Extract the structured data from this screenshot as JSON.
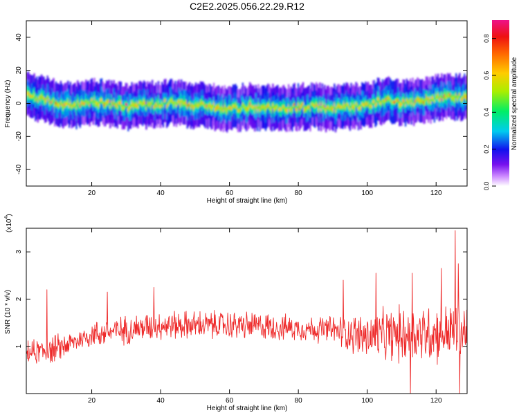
{
  "title": "C2E2.2025.056.22.29.R12",
  "colors": {
    "snr_line": "#ee2a2a",
    "axis": "#000000"
  },
  "chart_data": [
    {
      "type": "heatmap",
      "xlabel": "Height of straight line (km)",
      "ylabel": "Frequency (Hz)",
      "xlim": [
        1,
        129
      ],
      "ylim": [
        -50,
        50
      ],
      "xticks": [
        20,
        40,
        60,
        80,
        100,
        120
      ],
      "yticks": [
        -40,
        -20,
        0,
        20,
        40
      ],
      "xticklabels": [
        "20",
        "40",
        "60",
        "80",
        "100",
        "120"
      ],
      "yticklabels": [
        "-40",
        "-20",
        "0",
        "20",
        "40"
      ],
      "ridge_x": [
        1,
        5,
        10,
        15,
        20,
        25,
        30,
        35,
        40,
        45,
        50,
        55,
        60,
        65,
        70,
        75,
        80,
        85,
        90,
        95,
        100,
        105,
        110,
        115,
        120,
        125,
        129
      ],
      "ridge_y": [
        5,
        3,
        0,
        -1,
        1,
        0,
        -2,
        -1,
        0,
        0,
        -1,
        -2,
        -3,
        -2,
        -3,
        -3,
        -2,
        -2,
        -3,
        -2,
        -1,
        2,
        0,
        1,
        3,
        4,
        4
      ],
      "colorbar": {
        "label": "Normalized spectral amplitude",
        "range": [
          0,
          0.9
        ],
        "ticks": [
          0.0,
          0.2,
          0.4,
          0.6,
          0.8
        ],
        "ticklabels": [
          "0.0",
          "0.2",
          "0.4",
          "0.6",
          "0.8"
        ]
      }
    },
    {
      "type": "line",
      "xlabel": "Height of straight line (km)",
      "ylabel": "SNR (10 * v/v)",
      "scale_label": "(x10",
      "scale_exponent": "4",
      "xlim": [
        1,
        129
      ],
      "ylim": [
        0,
        3.5
      ],
      "xticks": [
        20,
        40,
        60,
        80,
        100,
        120
      ],
      "yticks": [
        1,
        2,
        3
      ],
      "xticklabels": [
        "20",
        "40",
        "60",
        "80",
        "100",
        "120"
      ],
      "yticklabels": [
        "1",
        "2",
        "3"
      ],
      "trend_x": [
        1,
        10,
        15,
        20,
        30,
        40,
        50,
        60,
        70,
        80,
        90,
        100,
        110,
        120,
        129
      ],
      "trend_y": [
        0.85,
        0.95,
        1.1,
        1.25,
        1.35,
        1.45,
        1.45,
        1.45,
        1.42,
        1.38,
        1.35,
        1.2,
        1.25,
        1.3,
        1.3
      ],
      "noise_x": [
        1,
        10,
        15,
        20,
        30,
        40,
        50,
        60,
        70,
        80,
        90,
        95,
        100,
        110,
        120,
        129
      ],
      "noise_y": [
        0.25,
        0.3,
        0.22,
        0.28,
        0.3,
        0.3,
        0.3,
        0.3,
        0.3,
        0.25,
        0.3,
        0.4,
        0.5,
        0.6,
        0.65,
        0.6
      ],
      "peaks": [
        {
          "x": 7,
          "y": 2.2
        },
        {
          "x": 24.5,
          "y": 2.15
        },
        {
          "x": 38,
          "y": 2.25
        },
        {
          "x": 93,
          "y": 2.4
        },
        {
          "x": 102.5,
          "y": 2.55
        },
        {
          "x": 113,
          "y": 2.55
        },
        {
          "x": 121.5,
          "y": 2.65
        },
        {
          "x": 125.5,
          "y": 3.45
        },
        {
          "x": 126.5,
          "y": 2.75
        }
      ],
      "dips": [
        {
          "x": 112.5,
          "y": 0.0
        },
        {
          "x": 126.8,
          "y": 0.0
        }
      ]
    }
  ]
}
